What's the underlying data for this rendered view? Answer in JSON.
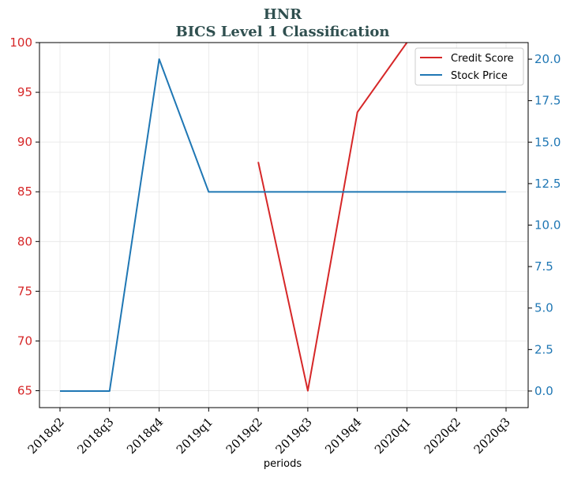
{
  "chart_data": {
    "type": "line",
    "title": "HNR",
    "subtitle": "BICS Level 1 Classification",
    "xlabel": "periods",
    "categories": [
      "2018q2",
      "2018q3",
      "2018q4",
      "2019q1",
      "2019q2",
      "2019q3",
      "2019q4",
      "2020q1",
      "2020q2",
      "2020q3"
    ],
    "y_left": {
      "ylim": [
        63.3,
        100
      ],
      "ticks": [
        "65",
        "70",
        "75",
        "80",
        "85",
        "90",
        "95",
        "100"
      ],
      "color": "#d62728"
    },
    "y_right": {
      "ylim": [
        -1.0,
        21.0
      ],
      "ticks": [
        "0.0",
        "2.5",
        "5.0",
        "7.5",
        "10.0",
        "12.5",
        "15.0",
        "17.5",
        "20.0"
      ],
      "color": "#1f77b4"
    },
    "series": [
      {
        "name": "Credit Score",
        "axis": "left",
        "color": "#d62728",
        "values": [
          null,
          null,
          null,
          null,
          88,
          65,
          93,
          100,
          null,
          null
        ]
      },
      {
        "name": "Stock Price",
        "axis": "right",
        "color": "#1f77b4",
        "values": [
          0,
          0,
          20,
          12,
          12,
          12,
          12,
          12,
          12,
          12
        ]
      }
    ],
    "legend": "top-right",
    "grid": true
  }
}
